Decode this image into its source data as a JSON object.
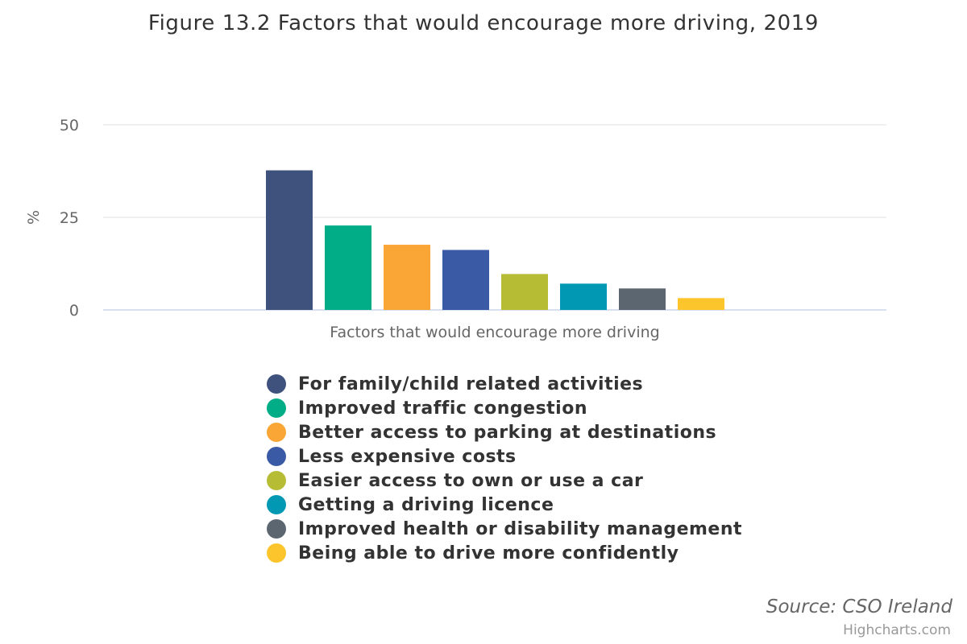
{
  "chart_data": {
    "type": "bar",
    "title": "Figure 13.2 Factors that would encourage more driving, 2019",
    "xlabel": "Factors that would encourage more driving",
    "ylabel": "%",
    "ylim": [
      0,
      50
    ],
    "yticks": [
      "0",
      "25",
      "50"
    ],
    "grid": true,
    "legend_position": "bottom",
    "series": [
      {
        "name": "For family/child related activities",
        "value": 37.7,
        "color": "#3f527e"
      },
      {
        "name": "Improved traffic congestion",
        "value": 22.8,
        "color": "#00ad86"
      },
      {
        "name": "Better access to parking at destinations",
        "value": 17.6,
        "color": "#f9a636"
      },
      {
        "name": "Less expensive costs",
        "value": 16.2,
        "color": "#3b5aa6"
      },
      {
        "name": "Easier access to own or use a car",
        "value": 9.7,
        "color": "#b6bd35"
      },
      {
        "name": "Getting a driving licence",
        "value": 7.1,
        "color": "#0098b2"
      },
      {
        "name": "Improved health or disability management",
        "value": 5.8,
        "color": "#5c6670"
      },
      {
        "name": "Being able to drive more confidently",
        "value": 3.2,
        "color": "#fdc52c"
      }
    ]
  },
  "credits": {
    "source": "Source: CSO Ireland",
    "highcharts": "Highcharts.com"
  }
}
